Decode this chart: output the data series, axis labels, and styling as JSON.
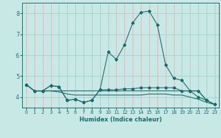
{
  "xlabel": "Humidex (Indice chaleur)",
  "ylabel": "",
  "bg_color": "#c8e8e5",
  "grid_color_x": "#d4b8b8",
  "grid_color_y": "#a8cece",
  "line_color": "#1a6b6b",
  "x_values": [
    0,
    1,
    2,
    3,
    4,
    5,
    6,
    7,
    8,
    9,
    10,
    11,
    12,
    13,
    14,
    15,
    16,
    17,
    18,
    19,
    20,
    21,
    22,
    23
  ],
  "line1": [
    4.6,
    4.3,
    4.3,
    4.55,
    4.5,
    3.85,
    3.9,
    3.75,
    3.85,
    4.35,
    6.15,
    5.8,
    6.5,
    7.55,
    8.05,
    8.1,
    7.45,
    5.55,
    4.9,
    4.8,
    4.3,
    4.0,
    3.85,
    3.65
  ],
  "line2": [
    4.6,
    4.3,
    4.3,
    4.55,
    4.5,
    3.85,
    3.9,
    3.75,
    3.85,
    4.35,
    4.35,
    4.35,
    4.4,
    4.4,
    4.45,
    4.45,
    4.45,
    4.45,
    4.45,
    4.3,
    4.3,
    4.3,
    3.85,
    3.65
  ],
  "line3": [
    4.6,
    4.3,
    4.3,
    4.3,
    4.3,
    4.3,
    4.3,
    4.3,
    4.3,
    4.3,
    4.3,
    4.3,
    4.3,
    4.3,
    4.3,
    4.3,
    4.3,
    4.3,
    4.3,
    4.3,
    4.3,
    4.3,
    3.85,
    3.65
  ],
  "line4": [
    4.6,
    4.3,
    4.3,
    4.3,
    4.25,
    4.15,
    4.1,
    4.1,
    4.1,
    4.1,
    4.1,
    4.1,
    4.1,
    4.1,
    4.1,
    4.15,
    4.15,
    4.15,
    4.1,
    4.1,
    4.0,
    3.9,
    3.75,
    3.65
  ],
  "ylim": [
    3.5,
    8.5
  ],
  "yticks": [
    4,
    5,
    6,
    7,
    8
  ],
  "xticks": [
    0,
    1,
    2,
    3,
    4,
    5,
    6,
    7,
    8,
    9,
    10,
    11,
    12,
    13,
    14,
    15,
    16,
    17,
    18,
    19,
    20,
    21,
    22,
    23
  ]
}
